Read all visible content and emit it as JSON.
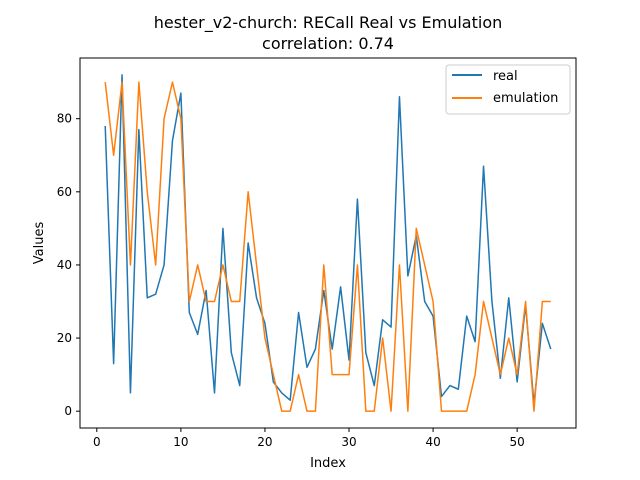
{
  "chart_data": {
    "type": "line",
    "title": "hester_v2-church: RECall Real vs Emulation",
    "subtitle": "correlation: 0.74",
    "xlabel": "Index",
    "ylabel": "Values",
    "xlim": [
      -2,
      57
    ],
    "ylim": [
      -4.6,
      96.6
    ],
    "xticks": [
      0,
      10,
      20,
      30,
      40,
      50
    ],
    "yticks": [
      0,
      20,
      40,
      60,
      80
    ],
    "grid": false,
    "legend_position": "top-right",
    "x": [
      1,
      2,
      3,
      4,
      5,
      6,
      7,
      8,
      9,
      10,
      11,
      12,
      13,
      14,
      15,
      16,
      17,
      18,
      19,
      20,
      21,
      22,
      23,
      24,
      25,
      26,
      27,
      28,
      29,
      30,
      31,
      32,
      33,
      34,
      35,
      36,
      37,
      38,
      39,
      40,
      41,
      42,
      43,
      44,
      45,
      46,
      47,
      48,
      49,
      50,
      51,
      52,
      53,
      54
    ],
    "series": [
      {
        "name": "real",
        "color": "#1f77b4",
        "values": [
          78,
          13,
          92,
          5,
          77,
          31,
          32,
          40,
          74,
          87,
          27,
          21,
          33,
          5,
          50,
          16,
          7,
          46,
          31,
          24,
          8,
          5,
          3,
          27,
          12,
          17,
          33,
          17,
          34,
          14,
          58,
          16,
          7,
          25,
          23,
          86,
          37,
          48,
          30,
          26,
          4,
          7,
          6,
          26,
          19,
          67,
          30,
          9,
          31,
          8,
          29,
          2,
          24,
          17
        ]
      },
      {
        "name": "emulation",
        "color": "#ff7f0e",
        "values": [
          90,
          70,
          90,
          40,
          90,
          60,
          40,
          80,
          90,
          80,
          30,
          40,
          30,
          30,
          40,
          30,
          30,
          60,
          40,
          20,
          10,
          0,
          0,
          10,
          0,
          0,
          40,
          10,
          10,
          10,
          40,
          0,
          0,
          20,
          0,
          40,
          0,
          50,
          40,
          30,
          0,
          0,
          0,
          0,
          10,
          30,
          20,
          10,
          20,
          10,
          30,
          0,
          30,
          30
        ]
      }
    ]
  }
}
